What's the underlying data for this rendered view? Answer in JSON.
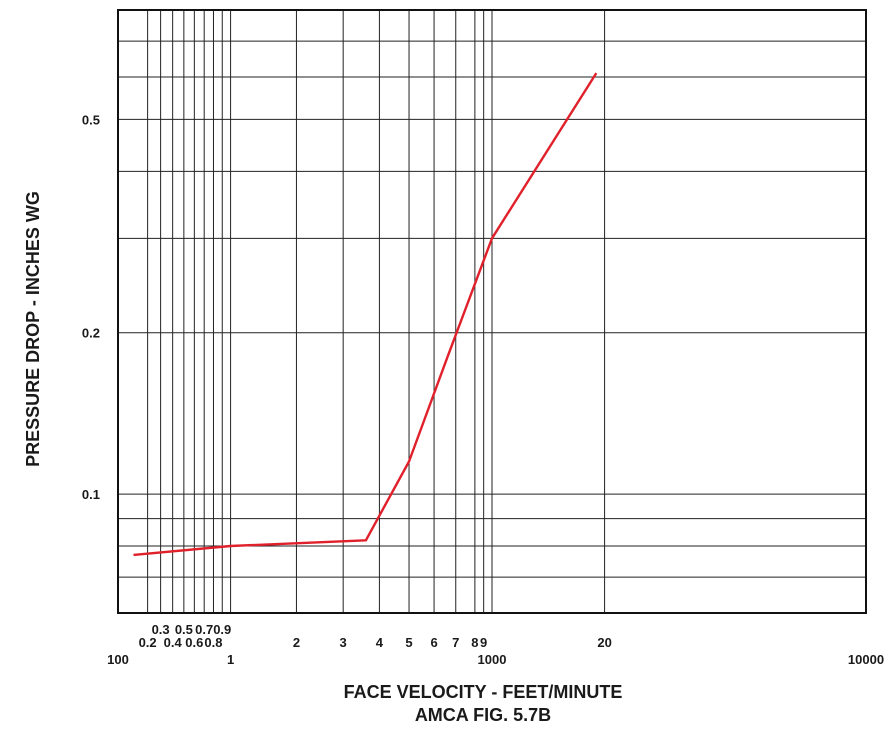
{
  "chart_data": {
    "type": "line",
    "title": "",
    "caption": "AMCA FIG. 5.7B",
    "xlabel": "FACE VELOCITY - FEET/MINUTE",
    "ylabel": "PRESSURE DROP - INCHES WG",
    "x_scale": "log",
    "y_scale": "log",
    "xlim": [
      100,
      10000
    ],
    "ylim": [
      0.06,
      0.8
    ],
    "grid": true,
    "x_ticks": [
      {
        "value": 100,
        "label": "100"
      },
      {
        "value": 120,
        "label": "0.2"
      },
      {
        "value": 130,
        "label": "0.3"
      },
      {
        "value": 140,
        "label": "0.4"
      },
      {
        "value": 150,
        "label": "0.5"
      },
      {
        "value": 160,
        "label": "0.6"
      },
      {
        "value": 170,
        "label": "0.7"
      },
      {
        "value": 180,
        "label": "0.8"
      },
      {
        "value": 190,
        "label": "0.9"
      },
      {
        "value": 200,
        "label": "1"
      },
      {
        "value": 300,
        "label": "2"
      },
      {
        "value": 400,
        "label": "3"
      },
      {
        "value": 500,
        "label": "4"
      },
      {
        "value": 600,
        "label": "5"
      },
      {
        "value": 700,
        "label": "6"
      },
      {
        "value": 800,
        "label": "7"
      },
      {
        "value": 900,
        "label": "8"
      },
      {
        "value": 950,
        "label": "9"
      },
      {
        "value": 1000,
        "label": "1000"
      },
      {
        "value": 2000,
        "label": "20"
      },
      {
        "value": 10000,
        "label": "10000"
      }
    ],
    "y_ticks": [
      {
        "value": 0.1,
        "label": "0.1"
      },
      {
        "value": 0.2,
        "label": "0.2"
      },
      {
        "value": 0.5,
        "label": "0.5"
      }
    ],
    "y_grid": [
      0.07,
      0.08,
      0.09,
      0.1,
      0.2,
      0.3,
      0.4,
      0.5,
      0.6,
      0.7
    ],
    "series": [
      {
        "color": "#e0202a",
        "x": [
          110,
          200,
          460,
          600,
          760,
          1000,
          1900
        ],
        "y": [
          0.077,
          0.08,
          0.082,
          0.115,
          0.18,
          0.3,
          0.61
        ]
      }
    ]
  }
}
